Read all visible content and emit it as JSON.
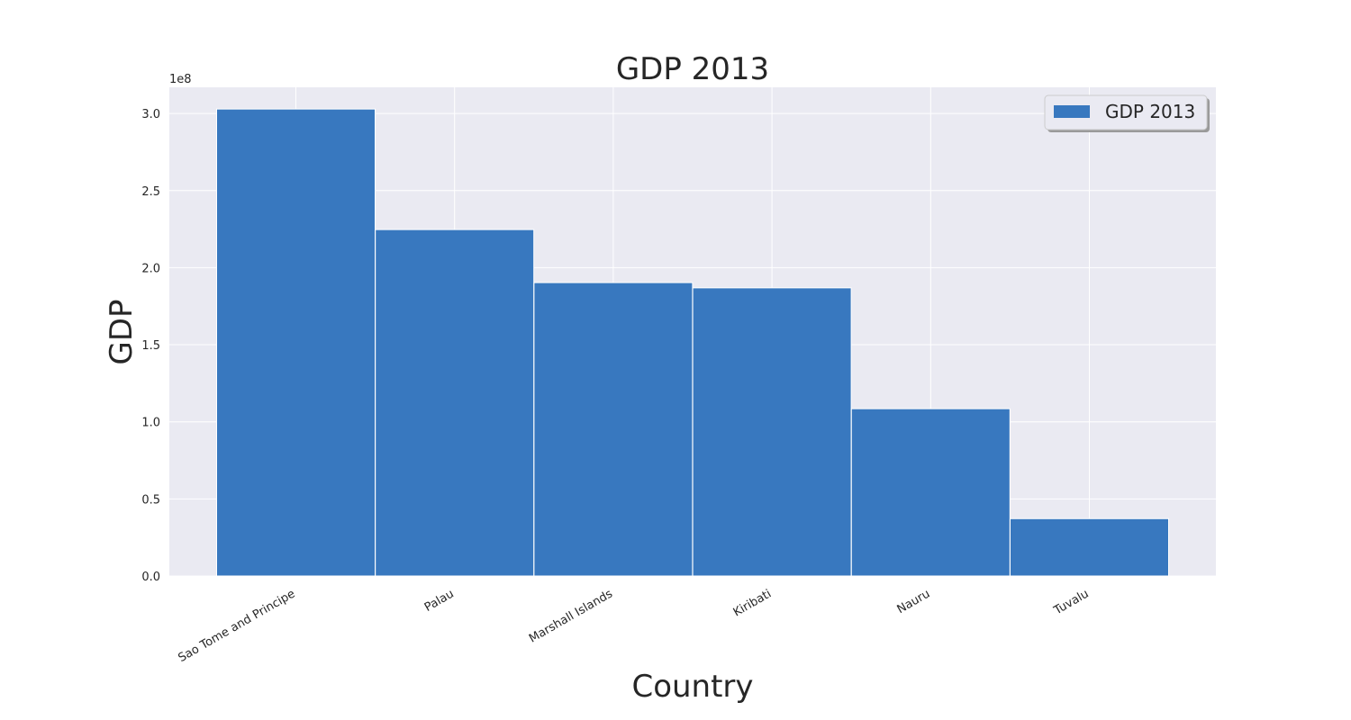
{
  "chart_data": {
    "type": "bar",
    "title": "GDP 2013",
    "xlabel": "Country",
    "ylabel": "GDP",
    "y_offset_label": "1e8",
    "categories": [
      "Sao Tome and Principe",
      "Palau",
      "Marshall Islands",
      "Kiribati",
      "Nauru",
      "Tuvalu"
    ],
    "series": [
      {
        "name": "GDP 2013",
        "values": [
          302900000,
          224700000,
          190300000,
          186900000,
          108500000,
          37200000
        ]
      }
    ],
    "y_ticks": [
      "0.0",
      "0.5",
      "1.0",
      "1.5",
      "2.0",
      "2.5",
      "3.0"
    ],
    "ylim": [
      0,
      317000000
    ],
    "grid": true,
    "legend_position": "top-right",
    "colors": {
      "bar": "#3878bf",
      "plot_bg": "#eaeaf2",
      "grid": "#ffffff"
    }
  }
}
